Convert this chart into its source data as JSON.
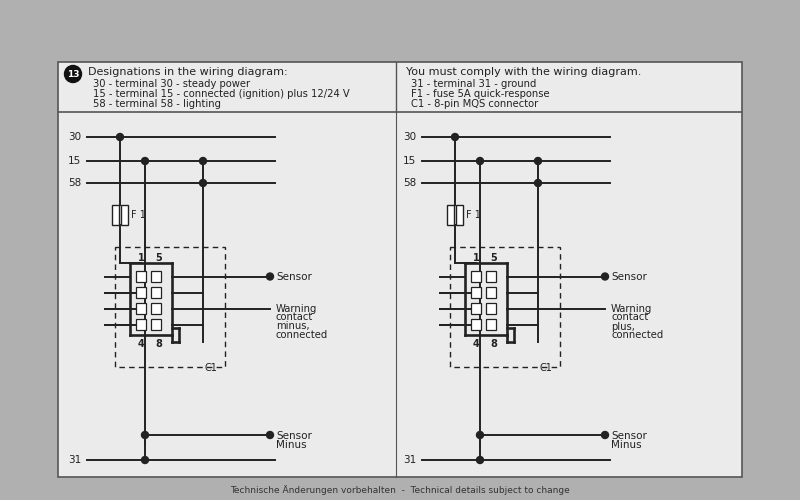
{
  "bg_color": "#b0b0b0",
  "panel_bg": "#ebebeb",
  "panel_border": "#333333",
  "line_color": "#222222",
  "text_color": "#222222",
  "footer_text": "Technische Änderungen vorbehalten  -  Technical details subject to change",
  "header_num": "13",
  "header_left_title": "Designations in the wiring diagram:",
  "header_left_items": [
    "30 - terminal 30 - steady power",
    "15 - terminal 15 - connected (ignition) plus 12/24 V",
    "58 - terminal 58 - lighting"
  ],
  "header_right_title": "You must comply with the wiring diagram.",
  "header_right_items": [
    "31 - terminal 31 - ground",
    "F1 - fuse 5A quick-response",
    "C1 - 8-pin MQS connector"
  ],
  "left_warning_label": [
    "Warning",
    "contact",
    "minus,",
    "connected"
  ],
  "right_warning_label": [
    "Warning",
    "contact",
    "plus,",
    "connected"
  ]
}
